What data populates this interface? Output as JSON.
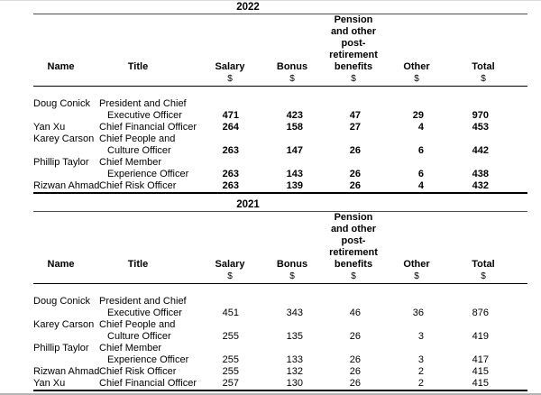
{
  "tables": [
    {
      "year": "2022",
      "header": {
        "name": "Name",
        "title": "Title",
        "salary": "Salary",
        "bonus": "Bonus",
        "pension_lines": [
          "Pension",
          "and other",
          "post-",
          "retirement",
          "benefits"
        ],
        "other": "Other",
        "total": "Total",
        "currency": "$"
      },
      "lines": [
        {
          "name": "Doug Conick",
          "title": "President and Chief"
        },
        {
          "title": "Executive Officer",
          "salary": "471",
          "bonus": "423",
          "pension": "47",
          "other": "29",
          "total": "970"
        },
        {
          "name": "Yan Xu",
          "title": "Chief Financial Officer",
          "salary": "264",
          "bonus": "158",
          "pension": "27",
          "other": "4",
          "total": "453"
        },
        {
          "name": "Karey Carson",
          "title": "Chief People and"
        },
        {
          "title": "Culture Officer",
          "salary": "263",
          "bonus": "147",
          "pension": "26",
          "other": "6",
          "total": "442"
        },
        {
          "name": "Phillip Taylor",
          "title": "Chief Member"
        },
        {
          "title": "Experience Officer",
          "salary": "263",
          "bonus": "143",
          "pension": "26",
          "other": "6",
          "total": "438"
        },
        {
          "name": "Rizwan Ahmad",
          "title": "Chief Risk Officer",
          "salary": "263",
          "bonus": "139",
          "pension": "26",
          "other": "4",
          "total": "432"
        }
      ]
    },
    {
      "year": "2021",
      "header": {
        "name": "Name",
        "title": "Title",
        "salary": "Salary",
        "bonus": "Bonus",
        "pension_lines": [
          "Pension",
          "and other",
          "post-",
          "retirement",
          "benefits"
        ],
        "other": "Other",
        "total": "Total",
        "currency": "$"
      },
      "lines": [
        {
          "name": "Doug Conick",
          "title": "President and Chief"
        },
        {
          "title": "Executive Officer",
          "salary": "451",
          "bonus": "343",
          "pension": "46",
          "other": "36",
          "total": "876"
        },
        {
          "name": "Karey Carson",
          "title": "Chief People and"
        },
        {
          "title": "Culture Officer",
          "salary": "255",
          "bonus": "135",
          "pension": "26",
          "other": "3",
          "total": "419"
        },
        {
          "name": "Phillip Taylor",
          "title": "Chief Member"
        },
        {
          "title": "Experience Officer",
          "salary": "255",
          "bonus": "133",
          "pension": "26",
          "other": "3",
          "total": "417"
        },
        {
          "name": "Rizwan Ahmad",
          "title": "Chief Risk Officer",
          "salary": "255",
          "bonus": "132",
          "pension": "26",
          "other": "2",
          "total": "415"
        },
        {
          "name": "Yan Xu",
          "title": "Chief Financial Officer",
          "salary": "257",
          "bonus": "130",
          "pension": "26",
          "other": "2",
          "total": "415"
        }
      ]
    }
  ]
}
